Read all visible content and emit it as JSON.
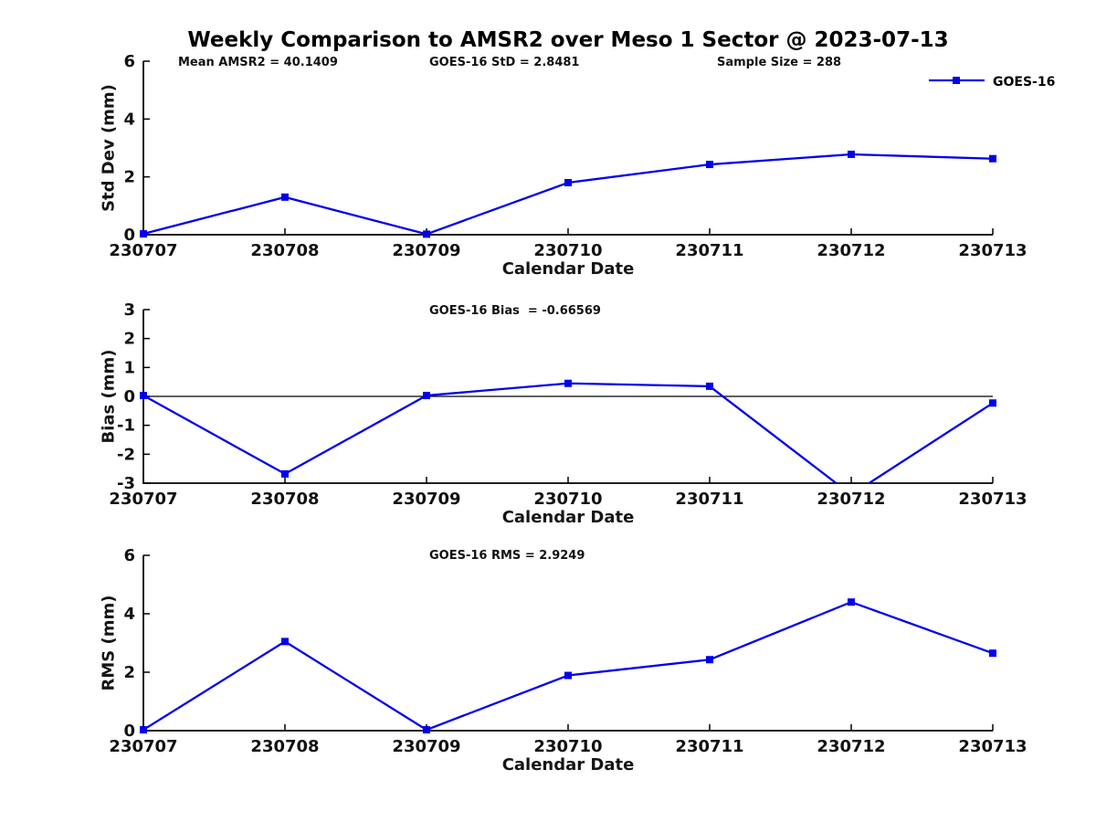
{
  "title": "Weekly Comparison to AMSR2 over Meso 1 Sector @ 2023-07-13",
  "accent_color": "#0000EE",
  "legend": {
    "label": "GOES-16",
    "position": "top-right"
  },
  "chart_data": [
    {
      "name": "stddev-subplot",
      "type": "line",
      "categories": [
        "230707",
        "230708",
        "230709",
        "230710",
        "230711",
        "230712",
        "230713"
      ],
      "series": [
        {
          "name": "GOES-16",
          "color": "#0000EE",
          "values": [
            0.03,
            1.3,
            0.02,
            1.8,
            2.43,
            2.78,
            2.63
          ]
        }
      ],
      "xlabel": "Calendar Date",
      "ylabel": "Std Dev (mm)",
      "ylim": [
        0,
        6
      ],
      "yticks": [
        0,
        2,
        4,
        6
      ],
      "grid": false,
      "legend_visible": true,
      "annotations": [
        "Mean AMSR2 = 40.1409",
        "GOES-16 StD = 2.8481",
        "Sample Size = 288"
      ]
    },
    {
      "name": "bias-subplot",
      "type": "line",
      "categories": [
        "230707",
        "230708",
        "230709",
        "230710",
        "230711",
        "230712",
        "230713"
      ],
      "series": [
        {
          "name": "GOES-16",
          "color": "#0000EE",
          "values": [
            0.03,
            -2.68,
            0.03,
            0.45,
            0.35,
            -3.4,
            -0.23
          ]
        }
      ],
      "xlabel": "Calendar Date",
      "ylabel": "Bias (mm)",
      "ylim": [
        -3,
        3
      ],
      "yticks": [
        -3,
        -2,
        -1,
        0,
        1,
        2,
        3
      ],
      "zero_line": true,
      "grid": false,
      "legend_visible": false,
      "annotations": [
        "GOES-16 Bias  = -0.66569"
      ]
    },
    {
      "name": "rms-subplot",
      "type": "line",
      "categories": [
        "230707",
        "230708",
        "230709",
        "230710",
        "230711",
        "230712",
        "230713"
      ],
      "series": [
        {
          "name": "GOES-16",
          "color": "#0000EE",
          "values": [
            0.03,
            3.05,
            0.03,
            1.89,
            2.43,
            4.4,
            2.65
          ]
        }
      ],
      "xlabel": "Calendar Date",
      "ylabel": "RMS (mm)",
      "ylim": [
        0,
        6
      ],
      "yticks": [
        0,
        2,
        4,
        6
      ],
      "grid": false,
      "legend_visible": false,
      "annotations": [
        "GOES-16 RMS = 2.9249"
      ]
    }
  ]
}
